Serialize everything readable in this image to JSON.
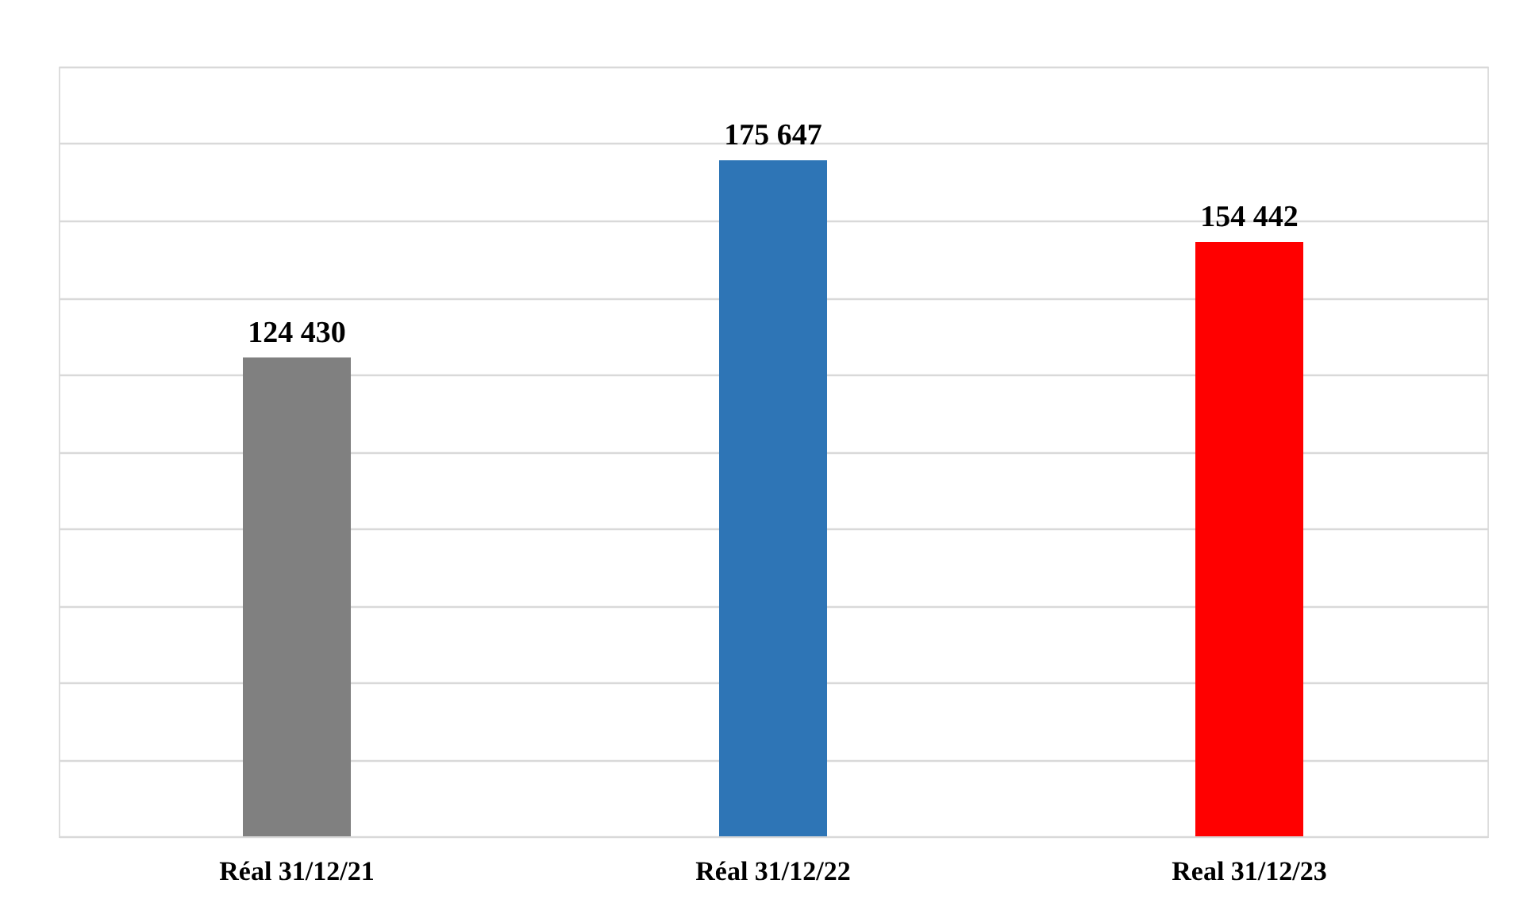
{
  "chart_data": {
    "type": "bar",
    "categories": [
      "Réal 31/12/21",
      "Réal 31/12/22",
      "Real  31/12/23"
    ],
    "values": [
      124430,
      175647,
      154442
    ],
    "colors": [
      "#808080",
      "#2e75b6",
      "#ff0000"
    ],
    "value_labels": [
      "124 430",
      "175 647",
      "154 442"
    ],
    "ylim": [
      0,
      200000
    ],
    "yticks": [
      {
        "value": 0,
        "label": null
      },
      {
        "value": 20000,
        "label": null
      },
      {
        "value": 40000,
        "label": null
      },
      {
        "value": 60000,
        "label": null
      },
      {
        "value": 80000,
        "label": null
      },
      {
        "value": 100000,
        "label": null
      },
      {
        "value": 120000,
        "label": null
      },
      {
        "value": 140000,
        "label": null
      },
      {
        "value": 160000,
        "label": null
      },
      {
        "value": 180000,
        "label": null
      },
      {
        "value": 200000,
        "label": null
      }
    ],
    "grid": "y",
    "tick_labels": "x",
    "legend": false
  }
}
